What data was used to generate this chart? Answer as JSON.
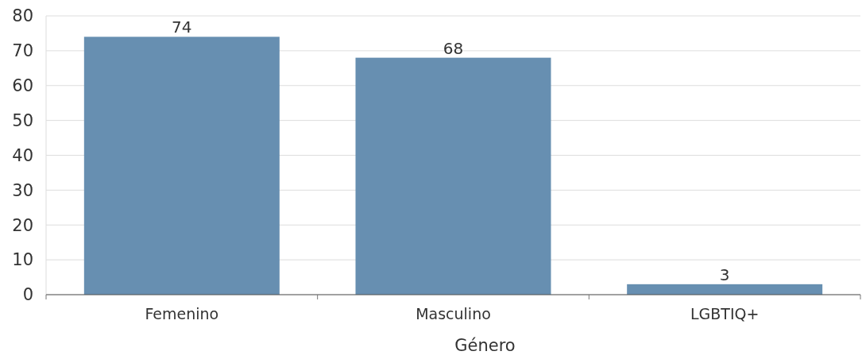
{
  "chart_data": {
    "type": "bar",
    "xlabel": "Género",
    "categories": [
      "Femenino",
      "Masculino",
      "LGBTIQ+"
    ],
    "values": [
      74,
      68,
      3
    ],
    "color": "#678fb1",
    "ylim": [
      0,
      80
    ],
    "yticks": [
      0,
      10,
      20,
      30,
      40,
      50,
      60,
      70,
      80
    ],
    "grid": "y",
    "data_labels": true
  }
}
